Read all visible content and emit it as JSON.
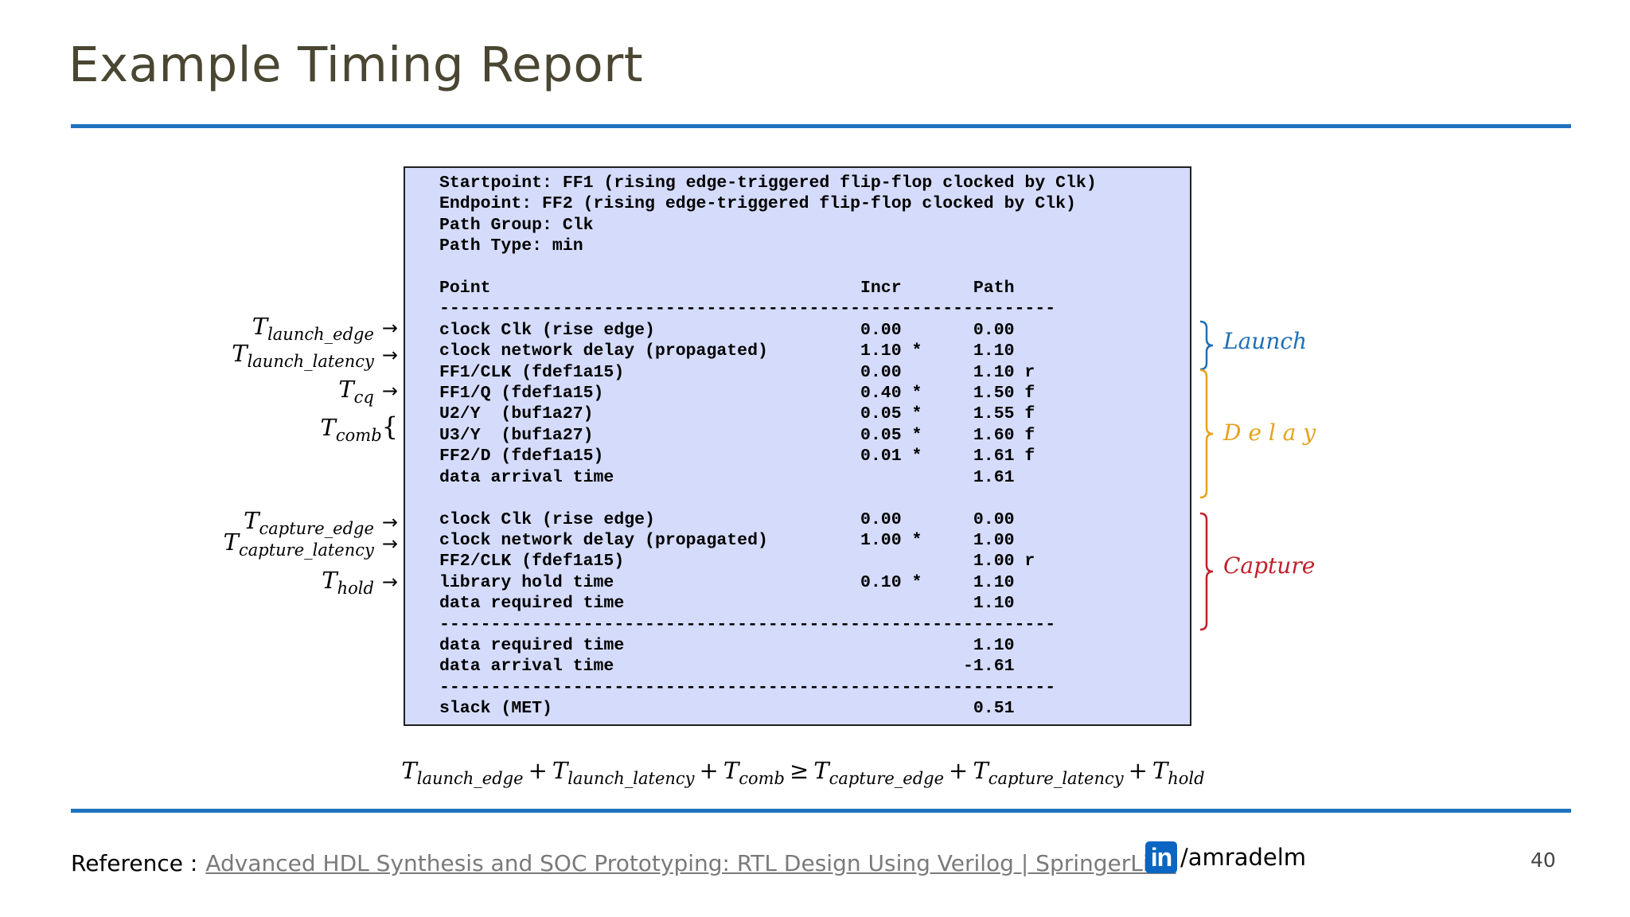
{
  "title": "Example Timing Report",
  "report": {
    "lines": [
      "Startpoint: FF1 (rising edge-triggered flip-flop clocked by Clk)",
      "Endpoint: FF2 (rising edge-triggered flip-flop clocked by Clk)",
      "Path Group: Clk",
      "Path Type: min",
      "",
      "Point                                    Incr       Path",
      "------------------------------------------------------------",
      "clock Clk (rise edge)                    0.00       0.00",
      "clock network delay (propagated)         1.10 *     1.10",
      "FF1/CLK (fdef1a15)                       0.00       1.10 r",
      "FF1/Q (fdef1a15)                         0.40 *     1.50 f",
      "U2/Y  (buf1a27)                          0.05 *     1.55 f",
      "U3/Y  (buf1a27)                          0.05 *     1.60 f",
      "FF2/D (fdef1a15)                         0.01 *     1.61 f",
      "data arrival time                                   1.61",
      "",
      "clock Clk (rise edge)                    0.00       0.00",
      "clock network delay (propagated)         1.00 *     1.00",
      "FF2/CLK (fdef1a15)                                  1.00 r",
      "library hold time                        0.10 *     1.10",
      "data required time                                  1.10",
      "------------------------------------------------------------",
      "data required time                                  1.10",
      "data arrival time                                  -1.61",
      "------------------------------------------------------------",
      "slack (MET)                                         0.51"
    ]
  },
  "left_labels": {
    "launch_edge": {
      "t": "T",
      "sub": "launch_edge",
      "arrow": "→"
    },
    "launch_latency": {
      "t": "T",
      "sub": "launch_latency",
      "arrow": "→"
    },
    "cq": {
      "t": "T",
      "sub": "cq",
      "arrow": "→"
    },
    "comb": {
      "t": "T",
      "sub": "comb",
      "brace": "{"
    },
    "capture_edge": {
      "t": "T",
      "sub": "capture_edge",
      "arrow": "→"
    },
    "capture_latency": {
      "t": "T",
      "sub": "capture_latency",
      "arrow": "→"
    },
    "hold": {
      "t": "T",
      "sub": "hold",
      "arrow": "→"
    }
  },
  "groups": {
    "launch": {
      "label": "Launch",
      "color": "#1f6fb5"
    },
    "delay": {
      "label": "D e l a y",
      "color": "#e6a21a"
    },
    "capture": {
      "label": "Capture",
      "color": "#c0202a"
    }
  },
  "equation": {
    "t1": "T",
    "s1": "launch_edge",
    "op1": "+",
    "t2": "T",
    "s2": "launch_latency",
    "op2": "+",
    "t3": "T",
    "s3": "comb",
    "op3": "≥",
    "t4": "T",
    "s4": "capture_edge",
    "op4": "+",
    "t5": "T",
    "s5": "capture_latency",
    "op5": "+",
    "t6": "T",
    "s6": "hold"
  },
  "footer": {
    "reference_label": "Reference :",
    "reference_link": "Advanced HDL Synthesis and SOC Prototyping: RTL Design Using Verilog | SpringerLink",
    "linkedin_logo": "in",
    "linkedin_handle": "/amradelm",
    "page_number": "40"
  }
}
